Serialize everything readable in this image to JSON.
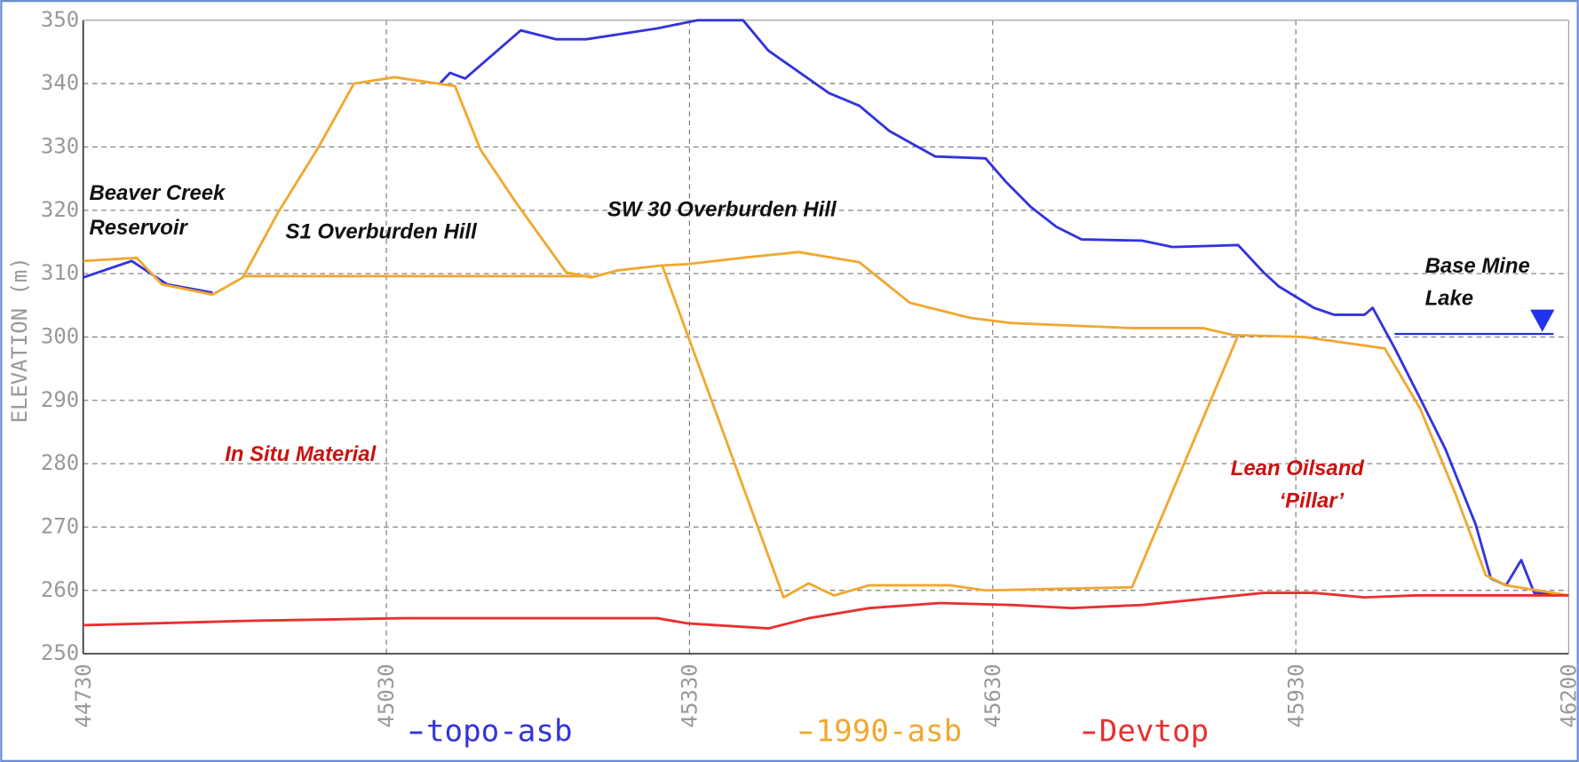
{
  "chart_data": {
    "type": "line",
    "ylabel": "ELEVATION (m)",
    "xlim": [
      44730,
      46200
    ],
    "xticks": [
      44730,
      45030,
      45330,
      45630,
      45930,
      46200
    ],
    "ylim": [
      250,
      350
    ],
    "yticks": [
      250,
      260,
      270,
      280,
      290,
      300,
      310,
      320,
      330,
      340,
      350
    ],
    "grid": true,
    "series": [
      {
        "name": "topo-asb",
        "color": "#3333dd",
        "x": [
          44730,
          44778,
          44813,
          44858,
          44900,
          45083,
          45093,
          45108,
          45163,
          45198,
          45228,
          45298,
          45338,
          45383,
          45408,
          45468,
          45498,
          45528,
          45573,
          45623,
          45643,
          45668,
          45693,
          45718,
          45778,
          45808,
          45873,
          45898,
          45913,
          45948,
          45968,
          45998,
          46006,
          46028,
          46053,
          46078,
          46108,
          46123,
          46138,
          46153,
          46166,
          46200
        ],
        "values": [
          309.4,
          312,
          308.3,
          307,
          null,
          340,
          341.7,
          340.8,
          348.4,
          347,
          347,
          348.7,
          350,
          350,
          345.2,
          338.5,
          336.5,
          332.5,
          328.5,
          328.2,
          324.5,
          320.5,
          317.4,
          315.4,
          315.2,
          314.2,
          314.5,
          310.2,
          308,
          304.6,
          303.5,
          303.5,
          304.6,
          298.2,
          290.3,
          282.3,
          270.4,
          261.9,
          260.8,
          264.8,
          259.6,
          259.2
        ]
      },
      {
        "name": "1990-asb",
        "color": "#f0a830",
        "x": [
          44730,
          44783,
          44808,
          44858,
          44888,
          44923,
          44963,
          44998,
          45038,
          45098,
          45123,
          45158,
          45208,
          45233,
          45258,
          45303,
          45328,
          45388,
          45438,
          45498,
          45548,
          45608,
          45648,
          45768,
          45838,
          45868,
          45938,
          46018,
          46053,
          46088,
          46118,
          46138,
          46200,
          46200,
          45303,
          45423,
          45448,
          45473,
          45508,
          45588,
          45623,
          45768,
          45873,
          45873,
          44888,
          45233
        ],
        "values": [
          312,
          312.5,
          308.3,
          306.7,
          309.4,
          319.7,
          330,
          340,
          341,
          339.6,
          329.6,
          321.3,
          310.2,
          309.4,
          310.5,
          311.3,
          311.5,
          312.6,
          313.4,
          311.8,
          305.4,
          303,
          302.2,
          301.4,
          301.4,
          300.3,
          300,
          298.2,
          288.7,
          275.2,
          262.4,
          260.8,
          259.2,
          null,
          311.3,
          258.9,
          261.1,
          259.2,
          260.8,
          260.8,
          260,
          260.5,
          300.3,
          null,
          309.6,
          309.6
        ]
      },
      {
        "name": "Devtop",
        "color": "#e83030",
        "x": [
          44730,
          44848,
          44898,
          45048,
          45298,
          45328,
          45408,
          45448,
          45508,
          45578,
          45648,
          45708,
          45778,
          45848,
          45898,
          45948,
          45998,
          46048,
          46200
        ],
        "values": [
          254.5,
          255,
          255.2,
          255.6,
          255.6,
          254.8,
          254,
          255.6,
          257.2,
          258,
          257.7,
          257.2,
          257.7,
          258.8,
          259.6,
          259.6,
          258.9,
          259.2,
          259.2
        ]
      }
    ],
    "annotations": [
      {
        "text": "Beaver  Creek",
        "color": "#111111"
      },
      {
        "text": "Reservoir",
        "color": "#111111"
      },
      {
        "text": "S1 Overburden Hill",
        "color": "#111111"
      },
      {
        "text": "SW 30 Overburden Hill",
        "color": "#111111"
      },
      {
        "text": "Base Mine",
        "color": "#111111"
      },
      {
        "text": "Lake",
        "color": "#111111"
      },
      {
        "text": "In Situ Material",
        "color": "#cc1111"
      },
      {
        "text": "Lean Oilsand",
        "color": "#cc1111"
      },
      {
        "text": "‘Pillar’",
        "color": "#cc1111"
      }
    ]
  }
}
